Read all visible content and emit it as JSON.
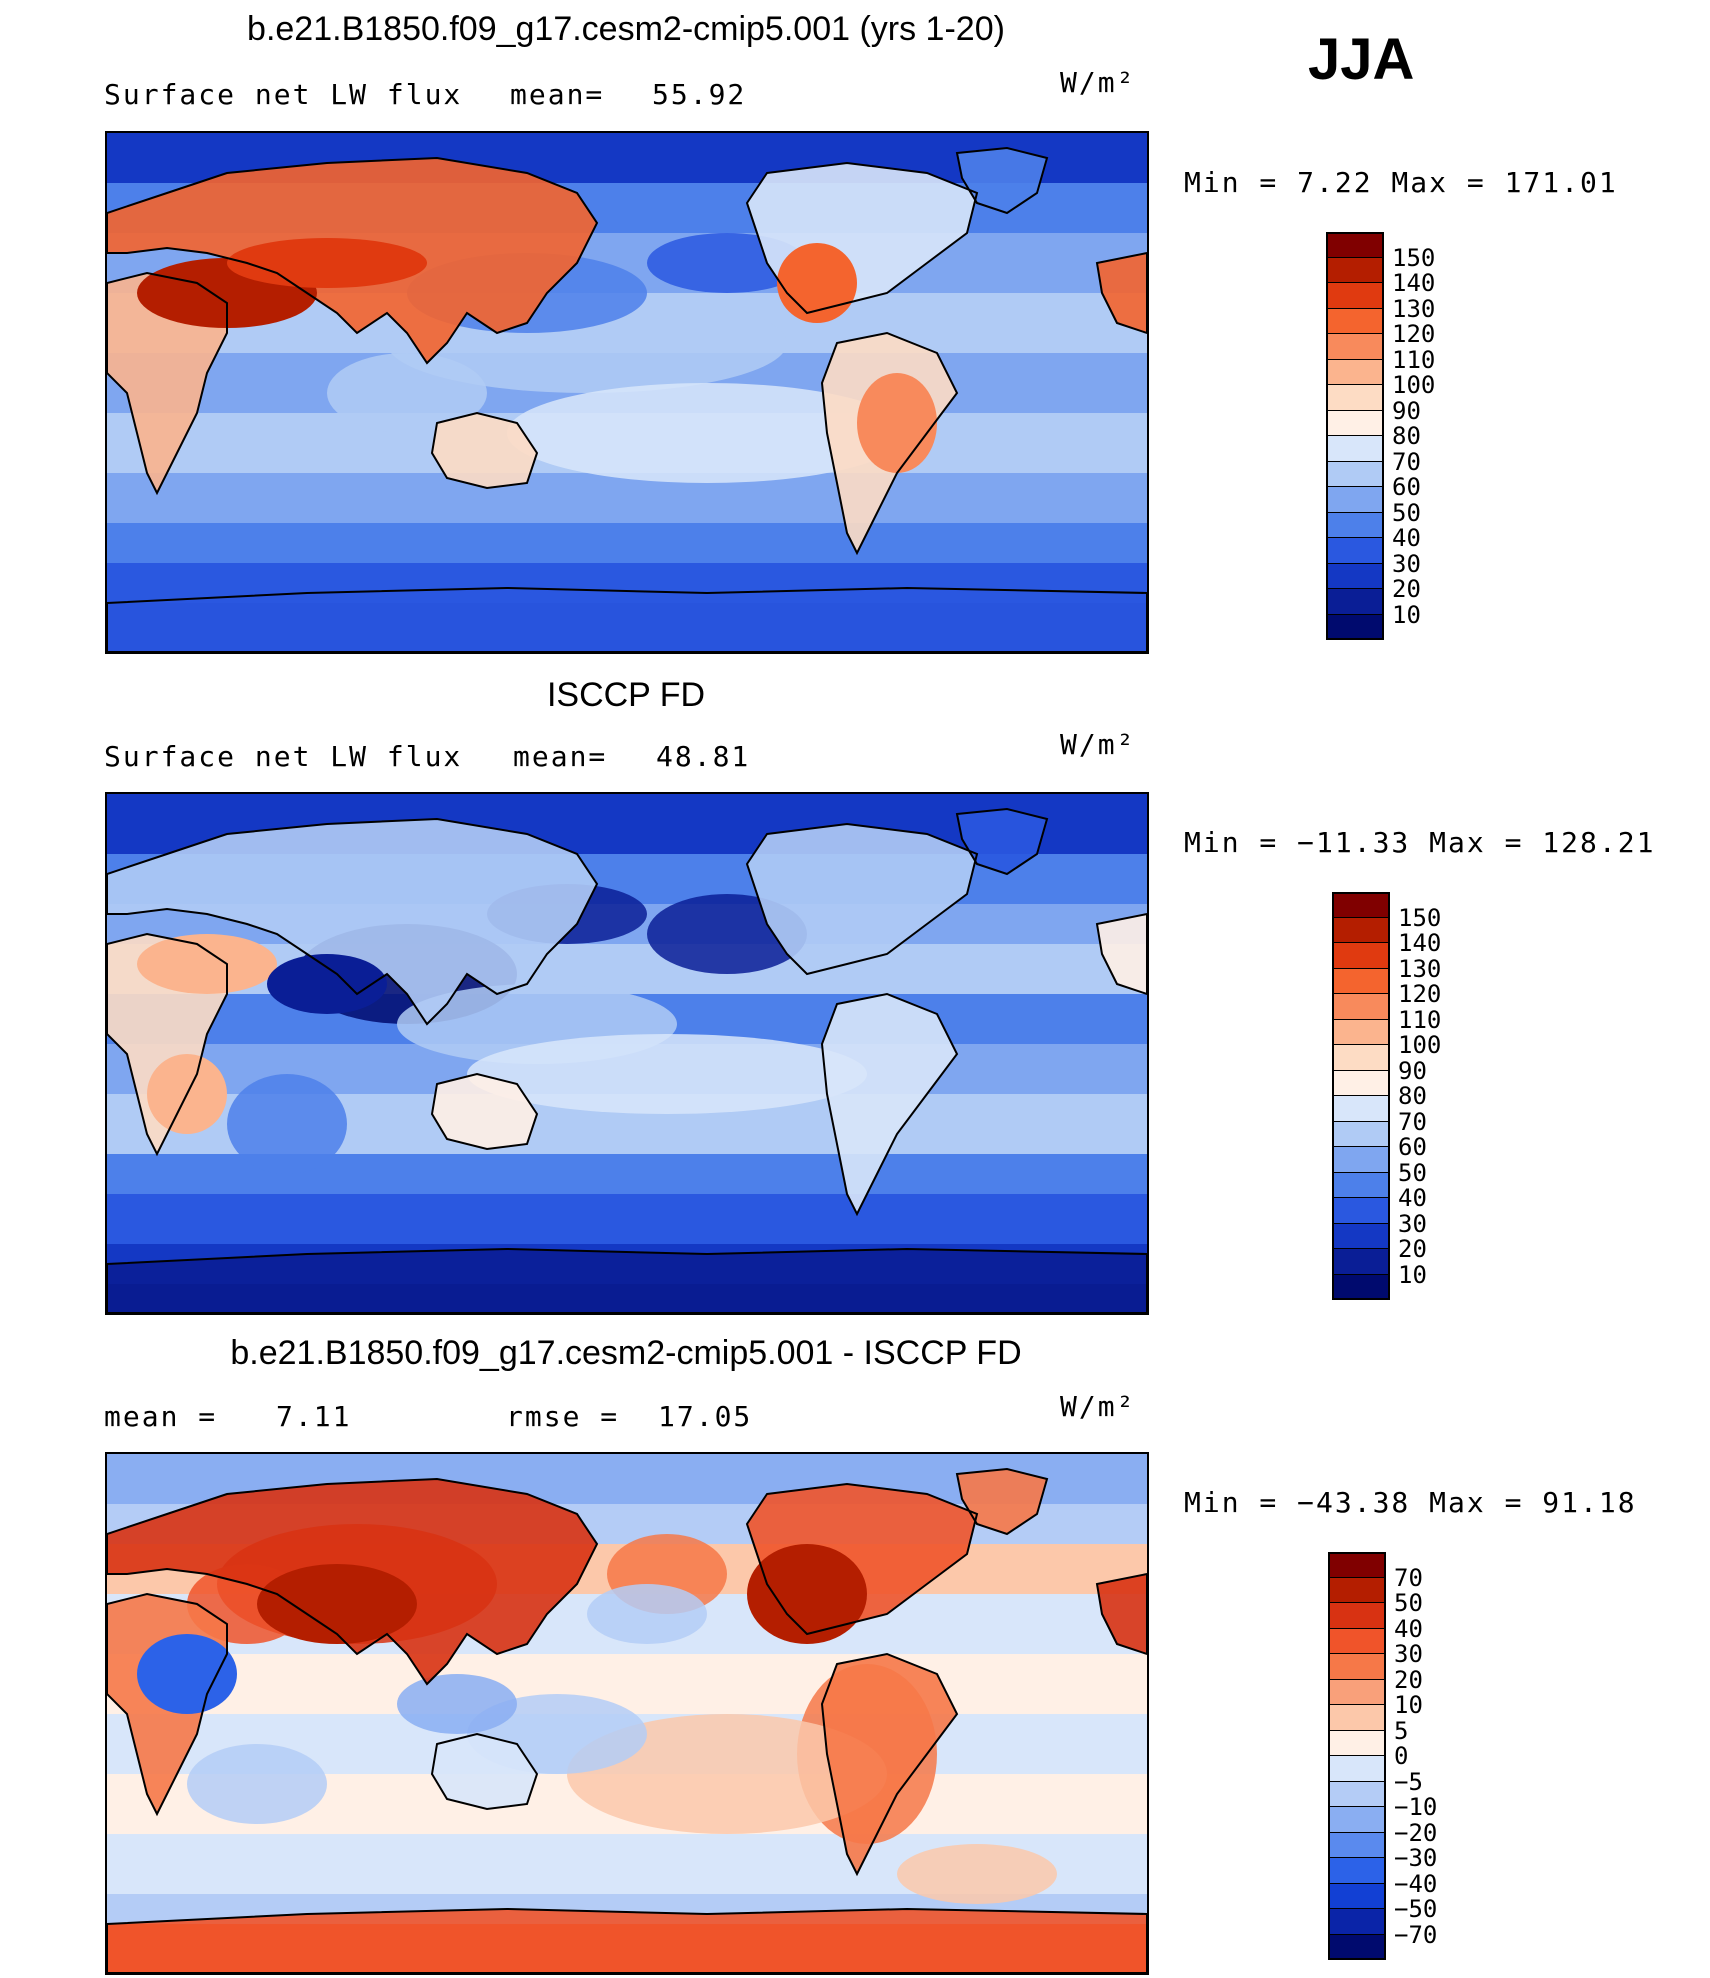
{
  "season": "JJA",
  "units": "W/m²",
  "colors": {
    "neutral_land": "#f4dcc8",
    "coastline": "#000000"
  },
  "panels": [
    {
      "id": "model",
      "title": "b.e21.B1850.f09_g17.cesm2-cmip5.001 (yrs 1-20)",
      "left_label": "Surface net LW flux",
      "stat_label": "mean=",
      "stat_value": "55.92",
      "units": "W/m²",
      "range_text": "Min =    7.22 Max = 171.01",
      "palette": {
        "levels": [
          "150",
          "140",
          "130",
          "120",
          "110",
          "100",
          "90",
          "80",
          "70",
          "60",
          "50",
          "40",
          "30",
          "20",
          "10"
        ],
        "colors": [
          "#800000",
          "#b41e00",
          "#e03a10",
          "#f4642e",
          "#f88a5c",
          "#fbb48e",
          "#fddcc4",
          "#fff0e6",
          "#d8e6fa",
          "#b0cbf5",
          "#7fa6f0",
          "#4d80ea",
          "#2a58e0",
          "#1438c4",
          "#0a1e96",
          "#000a6e"
        ]
      },
      "map_pattern": "model"
    },
    {
      "id": "obs",
      "title": "ISCCP FD",
      "left_label": "Surface net LW flux",
      "stat_label": "mean=",
      "stat_value": "48.81",
      "units": "W/m²",
      "range_text": "Min = −11.33 Max = 128.21",
      "palette": {
        "levels": [
          "150",
          "140",
          "130",
          "120",
          "110",
          "100",
          "90",
          "80",
          "70",
          "60",
          "50",
          "40",
          "30",
          "20",
          "10"
        ],
        "colors": [
          "#800000",
          "#b41e00",
          "#e03a10",
          "#f4642e",
          "#f88a5c",
          "#fbb48e",
          "#fddcc4",
          "#fff0e6",
          "#d8e6fa",
          "#b0cbf5",
          "#7fa6f0",
          "#4d80ea",
          "#2a58e0",
          "#1438c4",
          "#0a1e96",
          "#000a6e"
        ]
      },
      "map_pattern": "obs"
    },
    {
      "id": "diff",
      "title": "b.e21.B1850.f09_g17.cesm2-cmip5.001 - ISCCP FD",
      "left_label": "mean =",
      "left_value": "7.11",
      "stat_label": "rmse =",
      "stat_value": "17.05",
      "units": "W/m²",
      "range_text": "Min = −43.38 Max =  91.18",
      "palette": {
        "levels": [
          "70",
          "50",
          "40",
          "30",
          "20",
          "10",
          "5",
          "0",
          "−5",
          "−10",
          "−20",
          "−30",
          "−40",
          "−50",
          "−70"
        ],
        "colors": [
          "#800000",
          "#b41e00",
          "#d83212",
          "#f0542a",
          "#f67848",
          "#f9a07a",
          "#fcc8aa",
          "#fff0e6",
          "#d8e6fa",
          "#b4ccf6",
          "#8aaef2",
          "#5a8aee",
          "#2c62e8",
          "#1240d4",
          "#0a24a8",
          "#000a6e"
        ]
      },
      "map_pattern": "diff"
    }
  ]
}
